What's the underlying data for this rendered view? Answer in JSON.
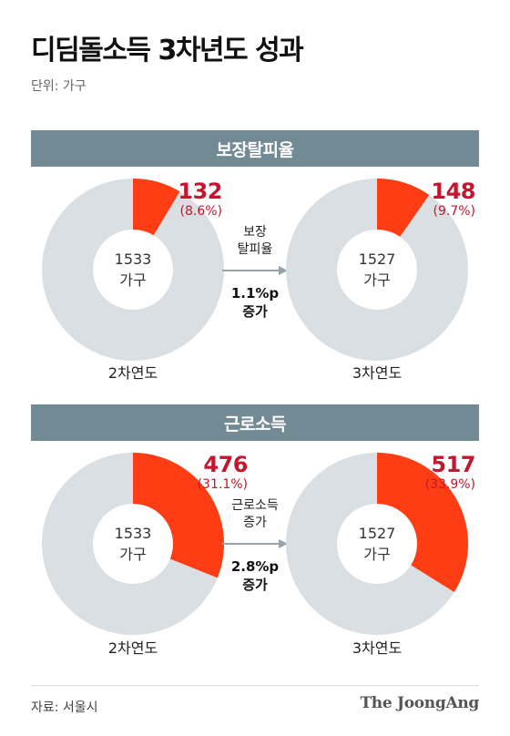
{
  "title": "디딤돌소득 3차년도 성과",
  "unit": "단위: 가구",
  "colors": {
    "accent": "#ff3d14",
    "ring": "#d9dfe2",
    "header": "#718a93",
    "value_text": "#c4162e"
  },
  "sections": [
    {
      "header": "보장탈피율",
      "mid_label_1": "보장",
      "mid_label_2": "탈피율",
      "change_1": "1.1%p",
      "change_2": "증가",
      "left": {
        "value": "132",
        "pct": "(8.6%)",
        "share": 0.086,
        "total": "1533",
        "total_unit": "가구",
        "year": "2차연도"
      },
      "right": {
        "value": "148",
        "pct": "(9.7%)",
        "share": 0.097,
        "total": "1527",
        "total_unit": "가구",
        "year": "3차연도"
      }
    },
    {
      "header": "근로소득",
      "mid_label_1": "근로소득",
      "mid_label_2": "증가",
      "change_1": "2.8%p",
      "change_2": "증가",
      "left": {
        "value": "476",
        "pct": "(31.1%)",
        "share": 0.311,
        "total": "1533",
        "total_unit": "가구",
        "year": "2차연도"
      },
      "right": {
        "value": "517",
        "pct": "(33.9%)",
        "share": 0.339,
        "total": "1527",
        "total_unit": "가구",
        "year": "3차연도"
      }
    }
  ],
  "source": "자료: 서울시",
  "brand": "The JoongAng",
  "chart_data": [
    {
      "type": "pie",
      "title": "보장탈피율",
      "categories": [
        "2차연도",
        "3차연도"
      ],
      "series": [
        {
          "name": "보장탈피율",
          "values": [
            132,
            148
          ]
        }
      ],
      "totals": [
        1533,
        1527
      ],
      "percent": [
        8.6,
        9.7
      ]
    },
    {
      "type": "pie",
      "title": "근로소득",
      "categories": [
        "2차연도",
        "3차연도"
      ],
      "series": [
        {
          "name": "근로소득",
          "values": [
            476,
            517
          ]
        }
      ],
      "totals": [
        1533,
        1527
      ],
      "percent": [
        31.1,
        33.9
      ]
    }
  ]
}
